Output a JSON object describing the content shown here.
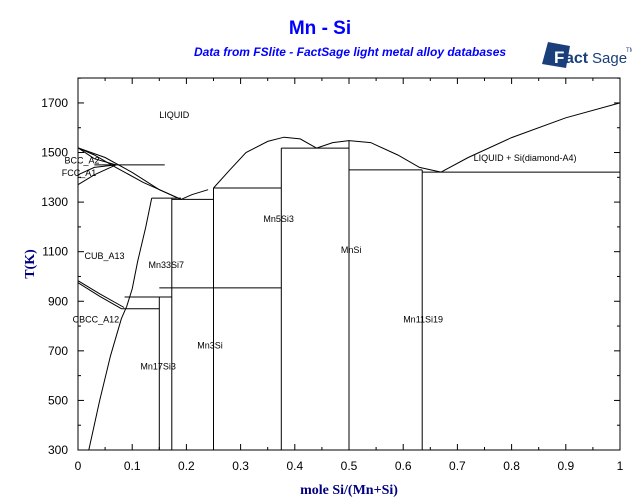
{
  "chart_data": {
    "type": "line",
    "title": "Mn - Si",
    "subtitle": "Data from FSlite - FactSage light metal alloy databases",
    "logo_text": "FactSage",
    "xlabel": "mole Si/(Mn+Si)",
    "ylabel": "T(K)",
    "xlim": [
      0,
      1
    ],
    "ylim": [
      300,
      1800
    ],
    "x_ticks": [
      "0",
      "0.1",
      "0.2",
      "0.3",
      "0.4",
      "0.5",
      "0.6",
      "0.7",
      "0.8",
      "0.9",
      "1"
    ],
    "y_ticks": [
      "300",
      "500",
      "700",
      "900",
      "1100",
      "1300",
      "1500",
      "1700"
    ],
    "grid": false,
    "colors": {
      "title": "#0000ff",
      "axis_label": "#000080",
      "lines": "#000000",
      "logo": "#1a3f7a"
    },
    "lines": [
      {
        "name": "liquidus-mn-side",
        "points": [
          [
            0,
            1519
          ],
          [
            0.05,
            1480
          ],
          [
            0.1,
            1420
          ],
          [
            0.15,
            1350
          ],
          [
            0.19,
            1311
          ]
        ]
      },
      {
        "name": "liquidus-mn3si",
        "points": [
          [
            0.19,
            1311
          ],
          [
            0.21,
            1330
          ],
          [
            0.24,
            1350
          ]
        ]
      },
      {
        "name": "liquidus-mn5si3-dome",
        "points": [
          [
            0.25,
            1357
          ],
          [
            0.28,
            1430
          ],
          [
            0.31,
            1500
          ],
          [
            0.35,
            1545
          ],
          [
            0.38,
            1562
          ],
          [
            0.41,
            1555
          ],
          [
            0.44,
            1518
          ]
        ]
      },
      {
        "name": "liquidus-mnsi-dome",
        "points": [
          [
            0.44,
            1518
          ],
          [
            0.47,
            1540
          ],
          [
            0.5,
            1548
          ],
          [
            0.54,
            1540
          ],
          [
            0.59,
            1490
          ],
          [
            0.63,
            1440
          ],
          [
            0.67,
            1421
          ]
        ]
      },
      {
        "name": "liquidus-si-side",
        "points": [
          [
            0.67,
            1421
          ],
          [
            0.72,
            1480
          ],
          [
            0.8,
            1560
          ],
          [
            0.9,
            1640
          ],
          [
            1,
            1700
          ]
        ]
      },
      {
        "name": "bcc-boundary-1",
        "points": [
          [
            0,
            1519
          ],
          [
            0.03,
            1490
          ],
          [
            0.07,
            1440
          ],
          [
            0.12,
            1380
          ],
          [
            0.185,
            1316
          ]
        ]
      },
      {
        "name": "bcc-boundary-2",
        "points": [
          [
            0,
            1519
          ],
          [
            0.03,
            1475
          ],
          [
            0.07,
            1450
          ]
        ]
      },
      {
        "name": "fcc-boundary-1",
        "points": [
          [
            0,
            1410
          ],
          [
            0.03,
            1440
          ],
          [
            0.07,
            1450
          ]
        ]
      },
      {
        "name": "fcc-boundary-2",
        "points": [
          [
            0,
            1370
          ],
          [
            0.03,
            1410
          ],
          [
            0.07,
            1450
          ]
        ]
      },
      {
        "name": "bcc-fcc-peritectic",
        "points": [
          [
            0.03,
            1450
          ],
          [
            0.16,
            1450
          ]
        ]
      },
      {
        "name": "mn33si7-left-boundary",
        "points": [
          [
            0.136,
            1316
          ],
          [
            0.125,
            1200
          ],
          [
            0.11,
            1060
          ],
          [
            0.1,
            950
          ],
          [
            0.09,
            880
          ]
        ]
      },
      {
        "name": "cbcc-boundary",
        "points": [
          [
            0.02,
            300
          ],
          [
            0.04,
            500
          ],
          [
            0.06,
            680
          ],
          [
            0.08,
            830
          ],
          [
            0.09,
            880
          ]
        ]
      },
      {
        "name": "cub-cbcc-1",
        "points": [
          [
            0,
            983
          ],
          [
            0.04,
            930
          ],
          [
            0.085,
            875
          ]
        ]
      },
      {
        "name": "cub-cbcc-2",
        "points": [
          [
            0,
            975
          ],
          [
            0.04,
            920
          ],
          [
            0.08,
            870
          ]
        ]
      },
      {
        "name": "h-1316",
        "points": [
          [
            0.136,
            1316
          ],
          [
            0.19,
            1316
          ]
        ]
      },
      {
        "name": "mn33si7-right",
        "points": [
          [
            0.173,
            300
          ],
          [
            0.173,
            1316
          ]
        ]
      },
      {
        "name": "h-1311",
        "points": [
          [
            0.173,
            1311
          ],
          [
            0.25,
            1311
          ]
        ]
      },
      {
        "name": "mn3si-right",
        "points": [
          [
            0.25,
            300
          ],
          [
            0.25,
            1357
          ]
        ]
      },
      {
        "name": "h-1357",
        "points": [
          [
            0.25,
            1357
          ],
          [
            0.375,
            1357
          ]
        ]
      },
      {
        "name": "mn5si3",
        "points": [
          [
            0.375,
            300
          ],
          [
            0.375,
            1518
          ]
        ]
      },
      {
        "name": "h-1518",
        "points": [
          [
            0.375,
            1518
          ],
          [
            0.5,
            1518
          ]
        ]
      },
      {
        "name": "mnsi",
        "points": [
          [
            0.5,
            300
          ],
          [
            0.5,
            1548
          ]
        ]
      },
      {
        "name": "h-1430",
        "points": [
          [
            0.5,
            1430
          ],
          [
            0.635,
            1430
          ]
        ]
      },
      {
        "name": "mn11si19",
        "points": [
          [
            0.635,
            300
          ],
          [
            0.635,
            1430
          ]
        ]
      },
      {
        "name": "h-1421",
        "points": [
          [
            0.635,
            1421
          ],
          [
            1,
            1421
          ]
        ]
      },
      {
        "name": "h-954",
        "points": [
          [
            0.15,
            954
          ],
          [
            0.375,
            954
          ]
        ]
      },
      {
        "name": "h-917",
        "points": [
          [
            0.086,
            917
          ],
          [
            0.173,
            917
          ]
        ]
      },
      {
        "name": "h-870",
        "points": [
          [
            0.08,
            870
          ],
          [
            0.15,
            870
          ]
        ]
      },
      {
        "name": "mn17si3",
        "points": [
          [
            0.15,
            300
          ],
          [
            0.15,
            917
          ]
        ]
      }
    ],
    "annotations": [
      {
        "text": "LIQUID",
        "x": 0.15,
        "y": 1640
      },
      {
        "text": "BCC_A2",
        "x": -0.025,
        "y": 1455
      },
      {
        "text": "FCC_A1",
        "x": -0.03,
        "y": 1405
      },
      {
        "text": "CUB_A13",
        "x": 0.012,
        "y": 1070
      },
      {
        "text": "Mn33Si7",
        "x": 0.13,
        "y": 1035
      },
      {
        "text": "CBCC_A12",
        "x": -0.01,
        "y": 815
      },
      {
        "text": "Mn17Si3",
        "x": 0.115,
        "y": 625
      },
      {
        "text": "Mn3Si",
        "x": 0.22,
        "y": 710
      },
      {
        "text": "Mn5Si3",
        "x": 0.342,
        "y": 1220
      },
      {
        "text": "MnSi",
        "x": 0.485,
        "y": 1095
      },
      {
        "text": "Mn11Si19",
        "x": 0.6,
        "y": 815
      },
      {
        "text": "LIQUID + Si(diamond-A4)",
        "x": 0.73,
        "y": 1465
      }
    ]
  }
}
